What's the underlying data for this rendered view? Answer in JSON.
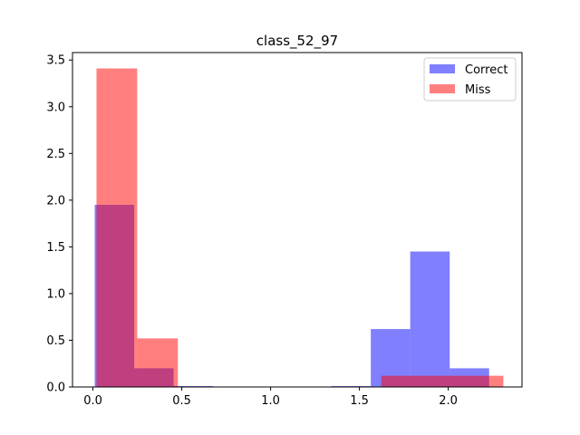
{
  "chart_data": {
    "type": "bar",
    "title": "class_52_97",
    "xlabel": "",
    "ylabel": "",
    "xlim": [
      -0.115,
      2.415
    ],
    "ylim": [
      0,
      3.58
    ],
    "xticks": [
      0.0,
      0.5,
      1.0,
      1.5,
      2.0
    ],
    "xtick_labels": [
      "0.0",
      "0.5",
      "1.0",
      "1.5",
      "2.0"
    ],
    "yticks": [
      0.0,
      0.5,
      1.0,
      1.5,
      2.0,
      2.5,
      3.0,
      3.5
    ],
    "ytick_labels": [
      "0.0",
      "0.5",
      "1.0",
      "1.5",
      "2.0",
      "2.5",
      "3.0",
      "3.5"
    ],
    "grid": false,
    "legend_position": "top-right",
    "series": [
      {
        "name": "Correct",
        "color": "#0000ff",
        "alpha": 0.5,
        "bins": [
          {
            "x0": 0.01,
            "x1": 0.232,
            "value": 1.95
          },
          {
            "x0": 0.232,
            "x1": 0.454,
            "value": 0.2
          },
          {
            "x0": 0.454,
            "x1": 0.676,
            "value": 0.01
          },
          {
            "x0": 0.676,
            "x1": 0.898,
            "value": 0
          },
          {
            "x0": 0.898,
            "x1": 1.12,
            "value": 0
          },
          {
            "x0": 1.12,
            "x1": 1.342,
            "value": 0
          },
          {
            "x0": 1.342,
            "x1": 1.564,
            "value": 0.01
          },
          {
            "x0": 1.564,
            "x1": 1.786,
            "value": 0.62
          },
          {
            "x0": 1.786,
            "x1": 2.008,
            "value": 1.45
          },
          {
            "x0": 2.008,
            "x1": 2.23,
            "value": 0.2
          }
        ]
      },
      {
        "name": "Miss",
        "color": "#ff0000",
        "alpha": 0.5,
        "bins": [
          {
            "x0": 0.02,
            "x1": 0.249,
            "value": 3.41
          },
          {
            "x0": 0.249,
            "x1": 0.478,
            "value": 0.52
          },
          {
            "x0": 0.478,
            "x1": 0.707,
            "value": 0
          },
          {
            "x0": 0.707,
            "x1": 0.936,
            "value": 0
          },
          {
            "x0": 0.936,
            "x1": 1.165,
            "value": 0
          },
          {
            "x0": 1.165,
            "x1": 1.394,
            "value": 0
          },
          {
            "x0": 1.394,
            "x1": 1.623,
            "value": 0
          },
          {
            "x0": 1.623,
            "x1": 1.852,
            "value": 0.12
          },
          {
            "x0": 1.852,
            "x1": 2.081,
            "value": 0.12
          },
          {
            "x0": 2.081,
            "x1": 2.31,
            "value": 0.12
          }
        ]
      }
    ]
  }
}
